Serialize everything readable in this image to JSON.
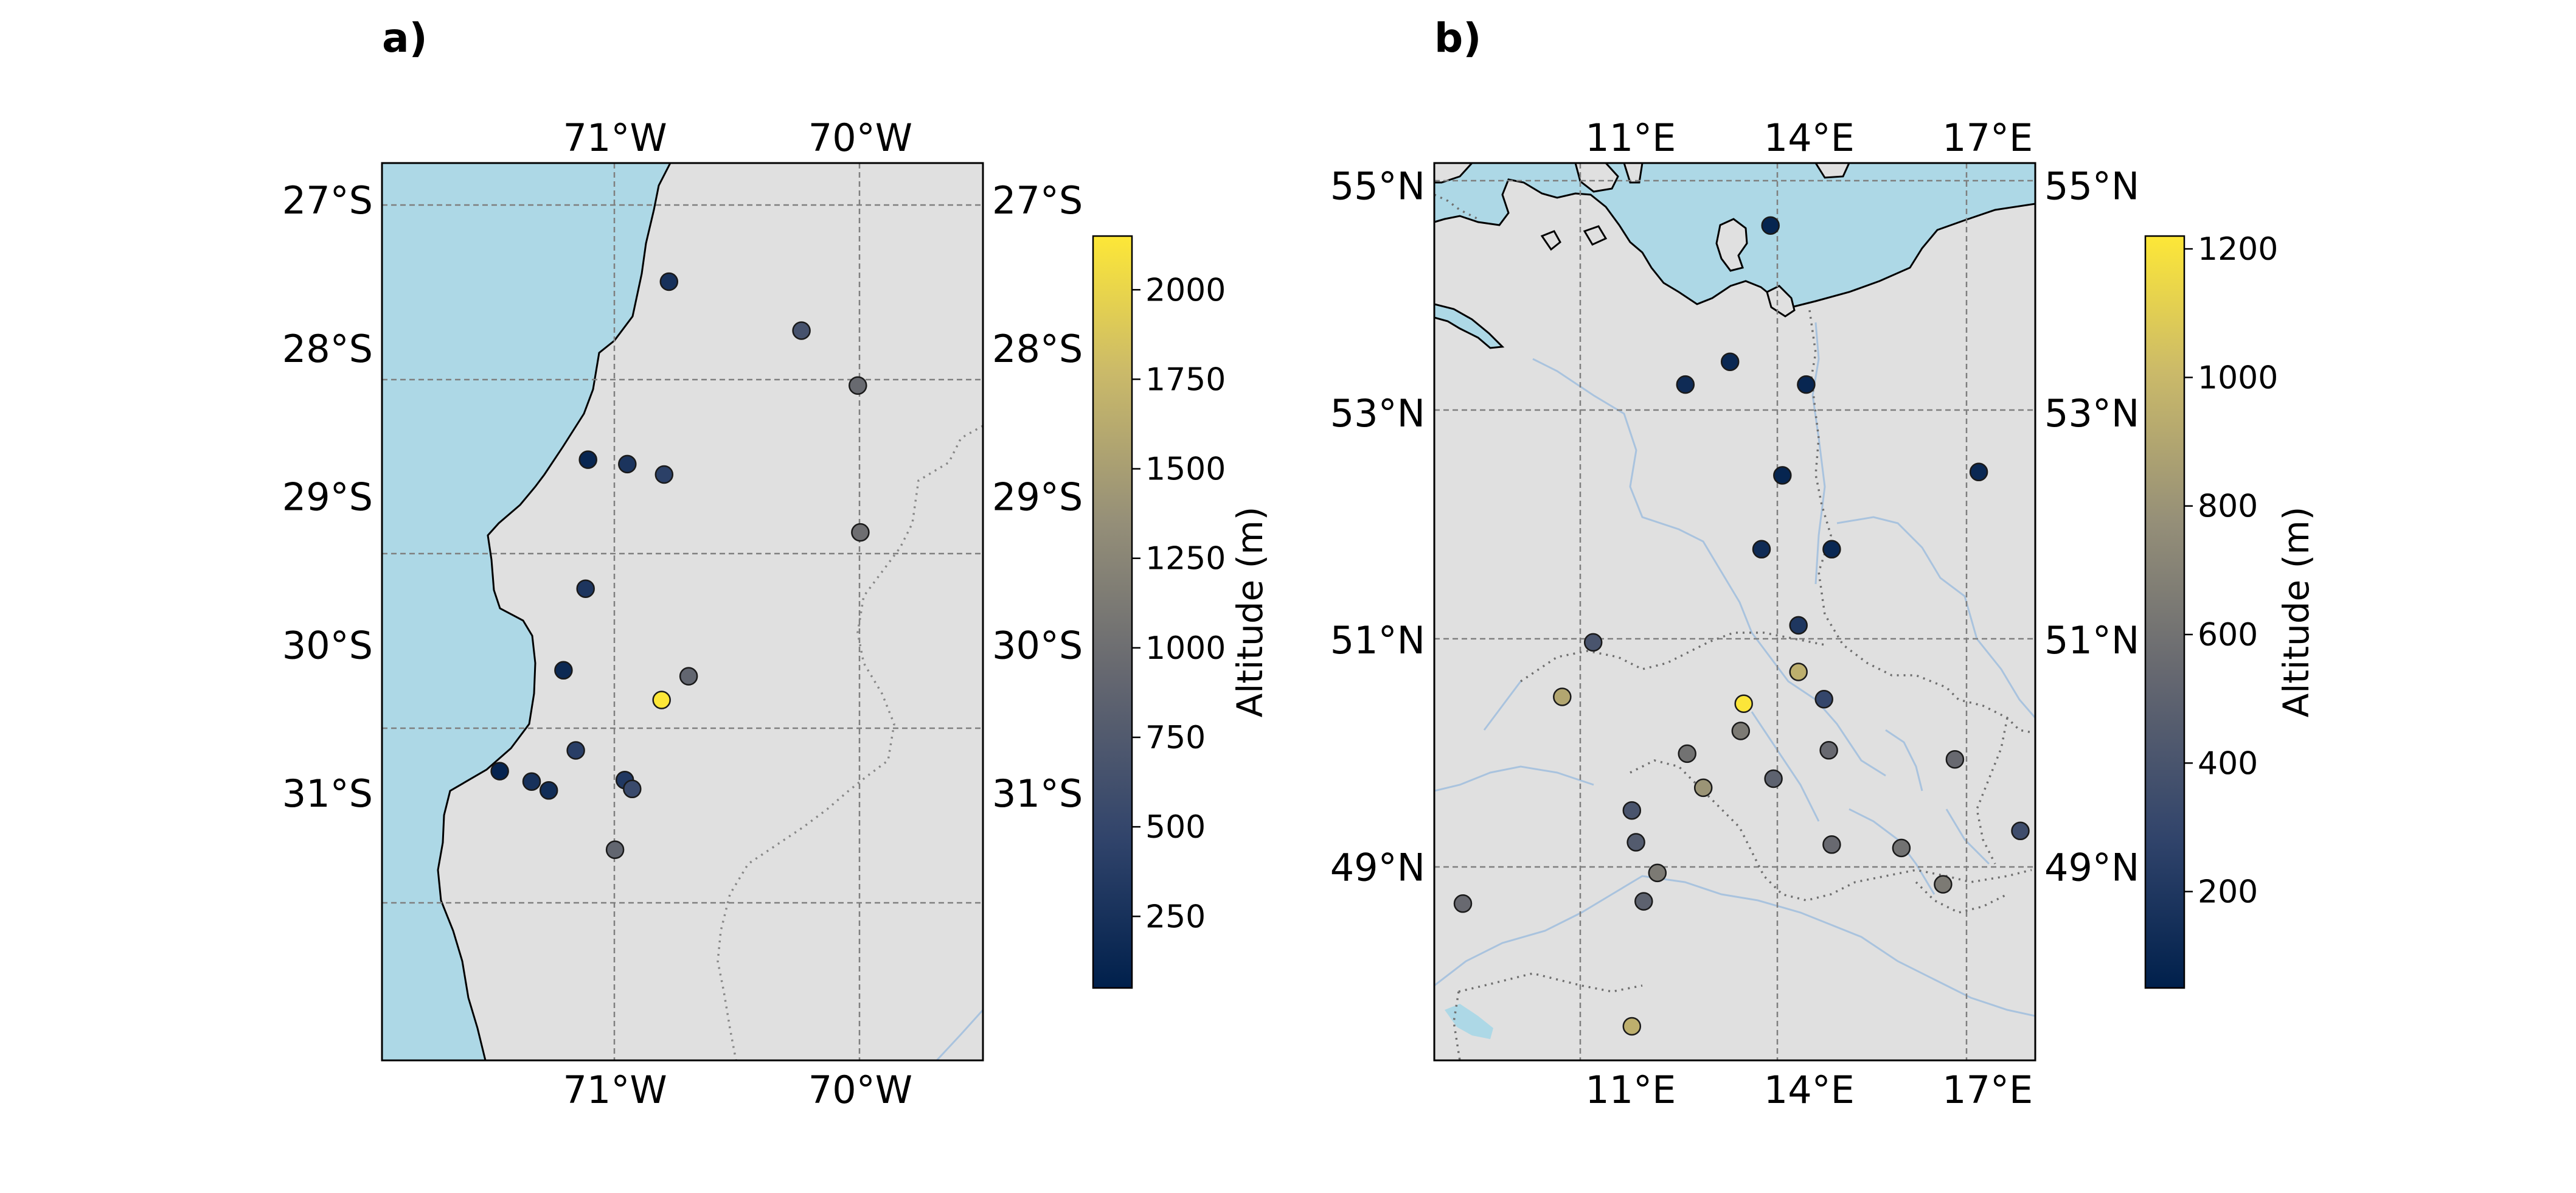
{
  "colorbar_palette": [
    "#00204c",
    "#31446b",
    "#666870",
    "#958f78",
    "#cbba69",
    "#fde737"
  ],
  "colors": {
    "ocean": "#add8e6",
    "land": "#e0e0e0",
    "station_edge": "#1a1a1a",
    "grid": "#7f7f7f",
    "border": "#888888",
    "river": "#a9c3de"
  },
  "maps": [
    {
      "id": "a",
      "panel_label": "a)",
      "extent": {
        "lon_min": -71.95,
        "lon_max": -69.5,
        "lat_min": -32.8,
        "lat_max": -26.75
      },
      "lon_ticks": [
        {
          "value": -71,
          "label": "71°W"
        },
        {
          "value": -70,
          "label": "70°W"
        }
      ],
      "lat_ticks": [
        {
          "value": -27,
          "label": "27°S"
        },
        {
          "value": -28,
          "label": "28°S"
        },
        {
          "value": -29,
          "label": "29°S"
        },
        {
          "value": -30,
          "label": "30°S"
        },
        {
          "value": -31,
          "label": "31°S"
        }
      ],
      "colorbar": {
        "label": "Altitude (m)",
        "min": 50,
        "max": 2150,
        "ticks": [
          {
            "value": 250,
            "label": "250"
          },
          {
            "value": 500,
            "label": "500"
          },
          {
            "value": 750,
            "label": "750"
          },
          {
            "value": 1000,
            "label": "1000"
          },
          {
            "value": 1250,
            "label": "1250"
          },
          {
            "value": 1500,
            "label": "1500"
          },
          {
            "value": 1750,
            "label": "1750"
          },
          {
            "value": 2000,
            "label": "2000"
          }
        ]
      },
      "stations": [
        {
          "lon": -70.78,
          "lat": -27.55,
          "alt": 250
        },
        {
          "lon": -70.24,
          "lat": -27.88,
          "alt": 650
        },
        {
          "lon": -70.01,
          "lat": -28.25,
          "alt": 950
        },
        {
          "lon": -71.11,
          "lat": -28.75,
          "alt": 120
        },
        {
          "lon": -70.95,
          "lat": -28.78,
          "alt": 280
        },
        {
          "lon": -70.8,
          "lat": -28.85,
          "alt": 420
        },
        {
          "lon": -70.0,
          "lat": -29.24,
          "alt": 1000
        },
        {
          "lon": -71.12,
          "lat": -29.62,
          "alt": 300
        },
        {
          "lon": -71.21,
          "lat": -30.17,
          "alt": 150
        },
        {
          "lon": -70.7,
          "lat": -30.21,
          "alt": 900
        },
        {
          "lon": -70.81,
          "lat": -30.37,
          "alt": 2150
        },
        {
          "lon": -71.16,
          "lat": -30.71,
          "alt": 400
        },
        {
          "lon": -71.47,
          "lat": -30.85,
          "alt": 100
        },
        {
          "lon": -71.34,
          "lat": -30.92,
          "alt": 250
        },
        {
          "lon": -71.27,
          "lat": -30.98,
          "alt": 200
        },
        {
          "lon": -70.96,
          "lat": -30.91,
          "alt": 330
        },
        {
          "lon": -70.93,
          "lat": -30.97,
          "alt": 550
        },
        {
          "lon": -71.0,
          "lat": -31.38,
          "alt": 900
        }
      ]
    },
    {
      "id": "b",
      "panel_label": "b)",
      "extent": {
        "lon_min": 7.7,
        "lon_max": 17.8,
        "lat_min": 47.3,
        "lat_max": 55.2
      },
      "lon_ticks": [
        {
          "value": 11,
          "label": "11°E"
        },
        {
          "value": 14,
          "label": "14°E"
        },
        {
          "value": 17,
          "label": "17°E"
        }
      ],
      "lat_ticks": [
        {
          "value": 49,
          "label": "49°N"
        },
        {
          "value": 51,
          "label": "51°N"
        },
        {
          "value": 53,
          "label": "53°N"
        },
        {
          "value": 55,
          "label": "55°N"
        }
      ],
      "colorbar": {
        "label": "Altitude (m)",
        "min": 50,
        "max": 1220,
        "ticks": [
          {
            "value": 200,
            "label": "200"
          },
          {
            "value": 400,
            "label": "400"
          },
          {
            "value": 600,
            "label": "600"
          },
          {
            "value": 800,
            "label": "800"
          },
          {
            "value": 1000,
            "label": "1000"
          },
          {
            "value": 1200,
            "label": "1200"
          }
        ]
      },
      "stations": [
        {
          "lon": 13.35,
          "lat": 54.65,
          "alt": 80
        },
        {
          "lon": 12.67,
          "lat": 53.45,
          "alt": 100
        },
        {
          "lon": 11.92,
          "lat": 53.25,
          "alt": 120
        },
        {
          "lon": 13.95,
          "lat": 53.25,
          "alt": 90
        },
        {
          "lon": 13.55,
          "lat": 52.45,
          "alt": 80
        },
        {
          "lon": 16.85,
          "lat": 52.48,
          "alt": 100
        },
        {
          "lon": 13.2,
          "lat": 51.8,
          "alt": 120
        },
        {
          "lon": 14.38,
          "lat": 51.8,
          "alt": 100
        },
        {
          "lon": 13.82,
          "lat": 51.13,
          "alt": 200
        },
        {
          "lon": 10.37,
          "lat": 50.98,
          "alt": 400
        },
        {
          "lon": 13.82,
          "lat": 50.72,
          "alt": 950
        },
        {
          "lon": 9.85,
          "lat": 50.5,
          "alt": 900
        },
        {
          "lon": 12.9,
          "lat": 50.44,
          "alt": 1210
        },
        {
          "lon": 14.25,
          "lat": 50.48,
          "alt": 300
        },
        {
          "lon": 12.85,
          "lat": 50.2,
          "alt": 650
        },
        {
          "lon": 11.95,
          "lat": 50.0,
          "alt": 600
        },
        {
          "lon": 14.33,
          "lat": 50.03,
          "alt": 550
        },
        {
          "lon": 16.45,
          "lat": 49.95,
          "alt": 550
        },
        {
          "lon": 13.4,
          "lat": 49.78,
          "alt": 500
        },
        {
          "lon": 12.22,
          "lat": 49.7,
          "alt": 800
        },
        {
          "lon": 11.02,
          "lat": 49.5,
          "alt": 400
        },
        {
          "lon": 11.09,
          "lat": 49.22,
          "alt": 450
        },
        {
          "lon": 17.55,
          "lat": 49.32,
          "alt": 350
        },
        {
          "lon": 14.38,
          "lat": 49.2,
          "alt": 550
        },
        {
          "lon": 15.55,
          "lat": 49.17,
          "alt": 600
        },
        {
          "lon": 11.45,
          "lat": 48.95,
          "alt": 650
        },
        {
          "lon": 16.25,
          "lat": 48.85,
          "alt": 650
        },
        {
          "lon": 8.18,
          "lat": 48.68,
          "alt": 550
        },
        {
          "lon": 11.22,
          "lat": 48.7,
          "alt": 500
        },
        {
          "lon": 11.02,
          "lat": 47.6,
          "alt": 950
        }
      ]
    }
  ]
}
